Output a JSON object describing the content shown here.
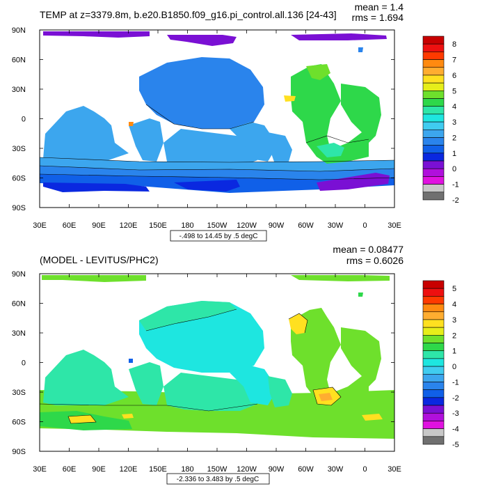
{
  "chart_data": [
    {
      "type": "heatmap",
      "title": "TEMP at z=3379.8m, b.e20.B1850.f09_g16.pi_control.all.136 [24-43]",
      "stats": {
        "mean": "mean = 1.4",
        "rms": "rms = 1.694"
      },
      "range_note": "-.498 to 14.45 by .5 degC",
      "x_ticks": [
        "30E",
        "60E",
        "90E",
        "120E",
        "150E",
        "180",
        "150W",
        "120W",
        "90W",
        "60W",
        "30W",
        "0",
        "30E"
      ],
      "y_ticks": [
        "90N",
        "60N",
        "30N",
        "0",
        "30S",
        "60S",
        "90S"
      ],
      "xlim": [
        30,
        390
      ],
      "ylim": [
        -90,
        90
      ],
      "colorbar": {
        "labels": [
          "8",
          "7",
          "6",
          "5",
          "4",
          "3",
          "2",
          "1",
          "0",
          "-1",
          "-2"
        ],
        "colors": [
          "#c80000",
          "#ee1010",
          "#ff3a00",
          "#ff8a10",
          "#ffad30",
          "#ffe020",
          "#e6ee1a",
          "#6ee02c",
          "#2ed84a",
          "#2ee6a8",
          "#1ee6e0",
          "#40ccf0",
          "#3ca6ee",
          "#2a84ec",
          "#1060e8",
          "#0a28e0",
          "#7a10d4",
          "#b010dc",
          "#e012e0",
          "#c8c8c8",
          "#707070"
        ]
      }
    },
    {
      "type": "heatmap",
      "title": "(MODEL - LEVITUS/PHC2)",
      "stats": {
        "mean": "mean = 0.08477",
        "rms": "rms = 0.6026"
      },
      "range_note": "-2.336 to 3.483 by .5 degC",
      "x_ticks": [
        "30E",
        "60E",
        "90E",
        "120E",
        "150E",
        "180",
        "150W",
        "120W",
        "90W",
        "60W",
        "30W",
        "0",
        "30E"
      ],
      "y_ticks": [
        "90N",
        "60N",
        "30N",
        "0",
        "30S",
        "60S",
        "90S"
      ],
      "xlim": [
        30,
        390
      ],
      "ylim": [
        -90,
        90
      ],
      "colorbar": {
        "labels": [
          "5",
          "4",
          "3",
          "2",
          "1",
          "0",
          "-1",
          "-2",
          "-3",
          "-4",
          "-5"
        ],
        "colors": [
          "#c80000",
          "#ee1010",
          "#ff3a00",
          "#ff8a10",
          "#ffad30",
          "#ffe020",
          "#e6ee1a",
          "#6ee02c",
          "#2ed84a",
          "#2ee6a8",
          "#1ee6e0",
          "#40ccf0",
          "#3ca6ee",
          "#2a84ec",
          "#1060e8",
          "#0a28e0",
          "#7a10d4",
          "#b010dc",
          "#e012e0",
          "#c8c8c8",
          "#707070"
        ]
      }
    }
  ]
}
